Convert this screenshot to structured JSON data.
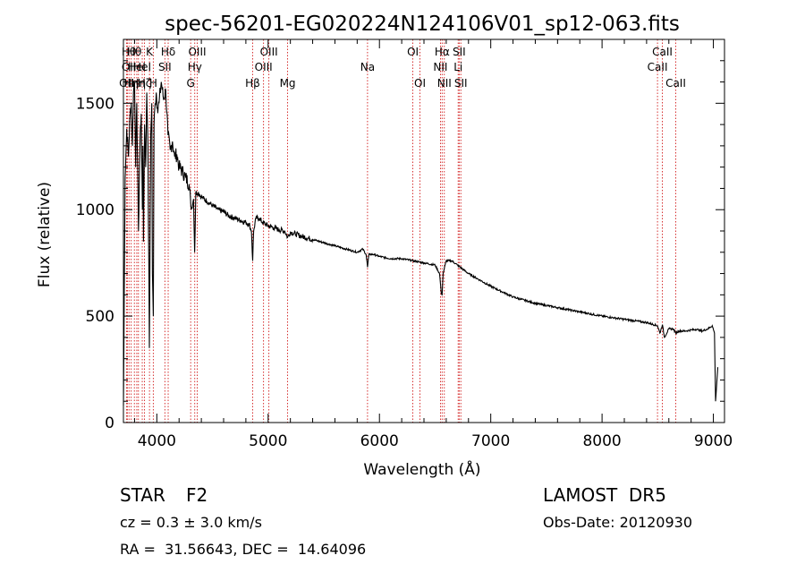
{
  "chart_data": {
    "type": "line",
    "title": "spec-56201-EG020224N124106V01_sp12-063.fits",
    "xlabel": "Wavelength (Å)",
    "ylabel": "Flux (relative)",
    "xlim": [
      3700,
      9100
    ],
    "ylim": [
      0,
      1800
    ],
    "xticks": [
      4000,
      5000,
      6000,
      7000,
      8000,
      9000
    ],
    "yticks": [
      0,
      500,
      1000,
      1500
    ],
    "grid": false,
    "series": [
      {
        "x": [
          3700,
          3715,
          3730,
          3745,
          3760,
          3770,
          3780,
          3790,
          3800,
          3810,
          3820,
          3835,
          3850,
          3860,
          3870,
          3875,
          3880,
          3890,
          3900,
          3910,
          3920,
          3933,
          3945,
          3955,
          3960,
          3968,
          3975,
          3985,
          3995,
          4005,
          4020,
          4040,
          4060,
          4080,
          4100,
          4120,
          4140,
          4160,
          4180,
          4200,
          4230,
          4260,
          4290,
          4310,
          4330,
          4340,
          4350,
          4370,
          4400,
          4450,
          4500,
          4550,
          4600,
          4650,
          4700,
          4750,
          4800,
          4830,
          4850,
          4861,
          4870,
          4890,
          4920,
          4950,
          5000,
          5050,
          5100,
          5150,
          5175,
          5200,
          5250,
          5300,
          5400,
          5500,
          5600,
          5700,
          5800,
          5850,
          5880,
          5893,
          5905,
          5950,
          6000,
          6100,
          6200,
          6300,
          6400,
          6500,
          6540,
          6555,
          6563,
          6572,
          6600,
          6650,
          6700,
          6800,
          6900,
          7000,
          7200,
          7400,
          7600,
          7800,
          8000,
          8200,
          8400,
          8498,
          8520,
          8542,
          8560,
          8600,
          8640,
          8662,
          8690,
          8750,
          8800,
          8850,
          8900,
          8950,
          8990,
          9010,
          9020,
          9040
        ],
        "y": [
          80,
          1150,
          1380,
          1250,
          1450,
          1500,
          1300,
          1550,
          1600,
          1200,
          1500,
          900,
          1350,
          1450,
          1000,
          1300,
          850,
          1400,
          1200,
          1550,
          1300,
          350,
          1350,
          1500,
          700,
          500,
          1400,
          1500,
          1550,
          1480,
          1500,
          1600,
          1520,
          1560,
          1350,
          1280,
          1320,
          1250,
          1260,
          1200,
          1180,
          1150,
          1120,
          1000,
          1050,
          800,
          1080,
          1080,
          1060,
          1040,
          1020,
          1000,
          990,
          970,
          960,
          950,
          940,
          930,
          900,
          760,
          900,
          960,
          960,
          940,
          925,
          915,
          905,
          900,
          870,
          895,
          885,
          875,
          860,
          845,
          830,
          815,
          800,
          815,
          790,
          730,
          790,
          790,
          780,
          770,
          770,
          760,
          750,
          740,
          700,
          610,
          600,
          700,
          760,
          760,
          740,
          700,
          670,
          640,
          590,
          560,
          540,
          520,
          500,
          485,
          470,
          455,
          420,
          460,
          400,
          440,
          440,
          420,
          430,
          430,
          435,
          438,
          430,
          440,
          455,
          420,
          100,
          260
        ]
      }
    ],
    "lines": [
      {
        "x": 3727,
        "label": "OII",
        "row": 3
      },
      {
        "x": 3735,
        "label": "OI",
        "row": 2
      },
      {
        "x": 3750,
        "label": "Hθ",
        "row": 1
      },
      {
        "x": 3770,
        "label": "Hη",
        "row": 3
      },
      {
        "x": 3798,
        "label": "Hθ",
        "row": 1
      },
      {
        "x": 3820,
        "label": "HeI",
        "row": 2
      },
      {
        "x": 3835,
        "label": "Hη",
        "row": 3
      },
      {
        "x": 3869,
        "label": "HeI",
        "row": 2
      },
      {
        "x": 3889,
        "label": "Hζ",
        "row": 3
      },
      {
        "x": 3934,
        "label": "K",
        "row": 1
      },
      {
        "x": 3968,
        "label": "H",
        "row": 3
      },
      {
        "x": 4072,
        "label": "SII",
        "row": 2
      },
      {
        "x": 4102,
        "label": "Hδ",
        "row": 1
      },
      {
        "x": 4304,
        "label": "G",
        "row": 3
      },
      {
        "x": 4341,
        "label": "Hγ",
        "row": 2
      },
      {
        "x": 4363,
        "label": "OIII",
        "row": 1
      },
      {
        "x": 4861,
        "label": "Hβ",
        "row": 3
      },
      {
        "x": 4959,
        "label": "OIII",
        "row": 2
      },
      {
        "x": 5007,
        "label": "OIII",
        "row": 1
      },
      {
        "x": 5175,
        "label": "Mg",
        "row": 3
      },
      {
        "x": 5893,
        "label": "Na",
        "row": 2
      },
      {
        "x": 6300,
        "label": "OI",
        "row": 1
      },
      {
        "x": 6364,
        "label": "OI",
        "row": 3
      },
      {
        "x": 6548,
        "label": "NII",
        "row": 2
      },
      {
        "x": 6563,
        "label": "Hα",
        "row": 1
      },
      {
        "x": 6583,
        "label": "NII",
        "row": 3
      },
      {
        "x": 6707,
        "label": "Li",
        "row": 2
      },
      {
        "x": 6716,
        "label": "SII",
        "row": 1
      },
      {
        "x": 6731,
        "label": "SII",
        "row": 3
      },
      {
        "x": 8498,
        "label": "CaII",
        "row": 2
      },
      {
        "x": 8542,
        "label": "CaII",
        "row": 1
      },
      {
        "x": 8662,
        "label": "CaII",
        "row": 3
      }
    ]
  },
  "info": {
    "class_type": "STAR",
    "subclass": "F2",
    "survey": "LAMOST  DR5",
    "redshift": "cz = 0.3 ± 3.0 km/s",
    "obs_date": "Obs-Date: 20120930",
    "coords": "RA =  31.56643, DEC =  14.64096"
  },
  "colors": {
    "axis": "#000000",
    "spectrum": "#000000",
    "marker_lines": "#cc0000",
    "background": "#ffffff"
  }
}
